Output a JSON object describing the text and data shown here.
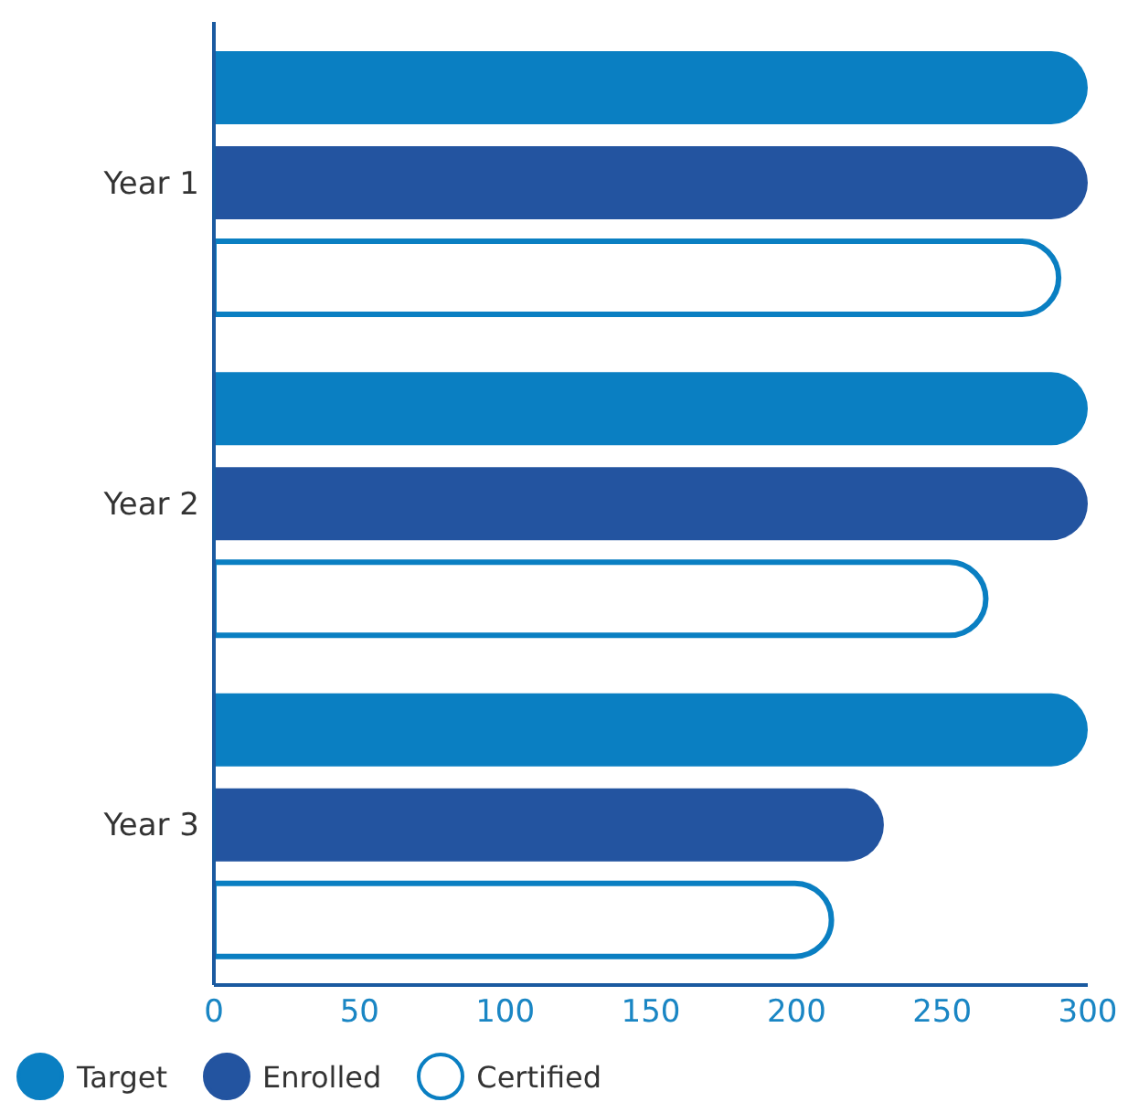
{
  "chart_data": {
    "type": "bar",
    "orientation": "horizontal",
    "categories": [
      "Year 1",
      "Year 2",
      "Year 3"
    ],
    "series": [
      {
        "name": "Target",
        "color": "#0a7fc2",
        "values": [
          300,
          300,
          300
        ]
      },
      {
        "name": "Enrolled",
        "color": "#2354a0",
        "values": [
          300,
          300,
          230
        ]
      },
      {
        "name": "Certified",
        "color": "#0a7fc2",
        "values": [
          290,
          265,
          212
        ]
      }
    ],
    "xlim": [
      0,
      300
    ],
    "xticks": [
      0,
      50,
      100,
      150,
      200,
      250,
      300
    ],
    "grid": false,
    "legend": "bottom"
  }
}
